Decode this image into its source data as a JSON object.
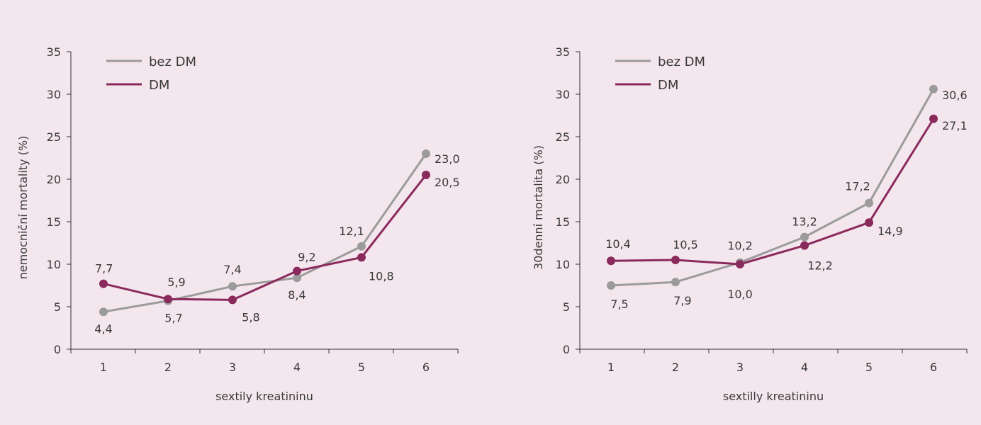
{
  "colors": {
    "background": "#f3e6ed",
    "bez_dm": "#9b9b9b",
    "dm": "#8a2a5c",
    "axis": "#333333"
  },
  "chart_data": [
    {
      "type": "line",
      "xlabel": "sextily kreatininu",
      "ylabel": "nemocniční mortality (%)",
      "ylim": [
        0,
        35
      ],
      "yticks": [
        "0",
        "5",
        "10",
        "15",
        "20",
        "25",
        "30",
        "35"
      ],
      "categories": [
        "1",
        "2",
        "3",
        "4",
        "5",
        "6"
      ],
      "legend_position": "top-left",
      "series": [
        {
          "name": "bez DM",
          "values": [
            4.4,
            5.7,
            7.4,
            8.4,
            12.1,
            23.0
          ],
          "labels": [
            "4,4",
            "5,7",
            "7,4",
            "8,4",
            "12,1",
            "23,0"
          ]
        },
        {
          "name": "DM",
          "values": [
            7.7,
            5.9,
            5.8,
            9.2,
            10.8,
            20.5
          ],
          "labels": [
            "7,7",
            "5,9",
            "5,8",
            "9,2",
            "10,8",
            "20,5"
          ]
        }
      ]
    },
    {
      "type": "line",
      "xlabel": "sextilly kreatininu",
      "ylabel": "30denní mortalita (%)",
      "ylim": [
        0,
        35
      ],
      "yticks": [
        "0",
        "5",
        "10",
        "15",
        "20",
        "25",
        "30",
        "35"
      ],
      "categories": [
        "1",
        "2",
        "3",
        "4",
        "5",
        "6"
      ],
      "legend_position": "top-left",
      "series": [
        {
          "name": "bez DM",
          "values": [
            7.5,
            7.9,
            10.2,
            13.2,
            17.2,
            30.6
          ],
          "labels": [
            "7,5",
            "7,9",
            "10,2",
            "13,2",
            "17,2",
            "30,6"
          ]
        },
        {
          "name": "DM",
          "values": [
            10.4,
            10.5,
            10.0,
            12.2,
            14.9,
            27.1
          ],
          "labels": [
            "10,4",
            "10,5",
            "10,0",
            "12,2",
            "14,9",
            "27,1"
          ]
        }
      ]
    }
  ]
}
